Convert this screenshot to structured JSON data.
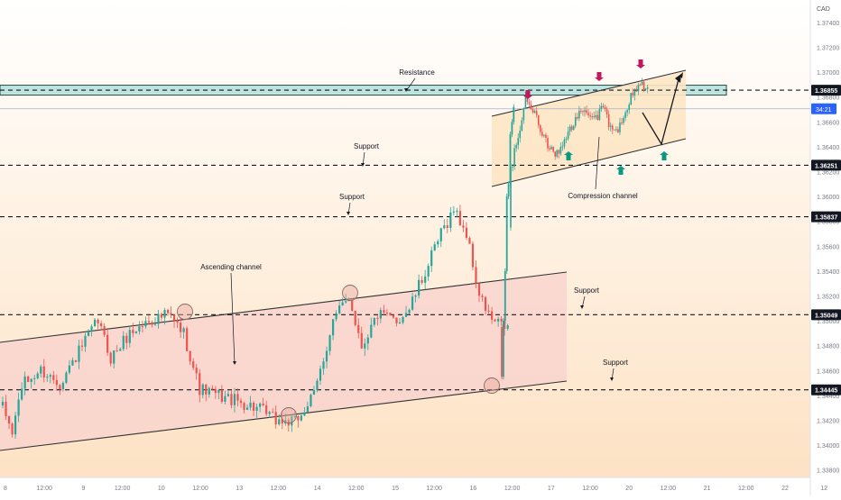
{
  "chart_data": {
    "type": "candlestick",
    "currency": "CAD",
    "y_axis": {
      "ylim": [
        1.3374,
        1.3758
      ],
      "ticks": [
        "1.37400",
        "1.37200",
        "1.37000",
        "1.36800",
        "1.36600",
        "1.36400",
        "1.36200",
        "1.36000",
        "1.35800",
        "1.35600",
        "1.35400",
        "1.35200",
        "1.35000",
        "1.34800",
        "1.34600",
        "1.34400",
        "1.34200",
        "1.34000",
        "1.33800"
      ]
    },
    "x_axis": {
      "labels": [
        "8",
        "12:00",
        "9",
        "12:00",
        "10",
        "12:00",
        "13",
        "12:00",
        "14",
        "12:00",
        "15",
        "12:00",
        "16",
        "12:00",
        "17",
        "12:00",
        "20",
        "12:00",
        "21",
        "12:00",
        "22",
        "12"
      ]
    },
    "price_labels": [
      {
        "value": 1.36855,
        "text": "1.36855"
      },
      {
        "value": 1.36251,
        "text": "1.36251"
      },
      {
        "value": 1.35837,
        "text": "1.35837"
      },
      {
        "value": 1.35049,
        "text": "1.35049"
      },
      {
        "value": 1.34445,
        "text": "1.34445"
      }
    ],
    "current": {
      "value": 1.36705,
      "countdown": "34:21"
    },
    "zones": [
      {
        "name": "Resistance",
        "from": 1.36815,
        "to": 1.36895,
        "color": "#b2dfdb"
      }
    ],
    "annotations": [
      {
        "text": "Resistance",
        "kind": "zone-label"
      },
      {
        "text": "Support",
        "kind": "level-label",
        "level": 1.36251
      },
      {
        "text": "Support",
        "kind": "level-label",
        "level": 1.35837
      },
      {
        "text": "Ascending channel",
        "kind": "pattern-label"
      },
      {
        "text": "Support",
        "kind": "level-label",
        "level": 1.35049
      },
      {
        "text": "Support",
        "kind": "level-label",
        "level": 1.34445
      },
      {
        "text": "Compression channel",
        "kind": "pattern-label"
      }
    ],
    "candles": {
      "count": 160,
      "key_points": [
        [
          0,
          1.343
        ],
        [
          3,
          1.341
        ],
        [
          6,
          1.3448
        ],
        [
          12,
          1.346
        ],
        [
          18,
          1.345
        ],
        [
          24,
          1.3475
        ],
        [
          30,
          1.35
        ],
        [
          34,
          1.347
        ],
        [
          40,
          1.349
        ],
        [
          46,
          1.35
        ],
        [
          52,
          1.3505
        ],
        [
          57,
          1.349
        ],
        [
          62,
          1.3445
        ],
        [
          68,
          1.344
        ],
        [
          74,
          1.3435
        ],
        [
          80,
          1.343
        ],
        [
          86,
          1.342
        ],
        [
          92,
          1.3418
        ],
        [
          98,
          1.344
        ],
        [
          104,
          1.35
        ],
        [
          109,
          1.352
        ],
        [
          113,
          1.348
        ],
        [
          118,
          1.3505
        ],
        [
          124,
          1.35
        ],
        [
          128,
          1.351
        ],
        [
          134,
          1.3545
        ],
        [
          138,
          1.357
        ],
        [
          142,
          1.359
        ],
        [
          146,
          1.357
        ],
        [
          150,
          1.352
        ],
        [
          154,
          1.35
        ],
        [
          158,
          1.3495
        ]
      ]
    },
    "colors": {
      "up": "#26a69a",
      "down": "#ef5350",
      "channel_fill": "#f8d2cd",
      "compression_fill": "#fde6c4",
      "bg_top": "#ffffff",
      "bg_bottom": "#fde2c4",
      "resistance": "#b2dfdb",
      "arrow_up": "#089981",
      "arrow_down": "#c2185b"
    }
  }
}
